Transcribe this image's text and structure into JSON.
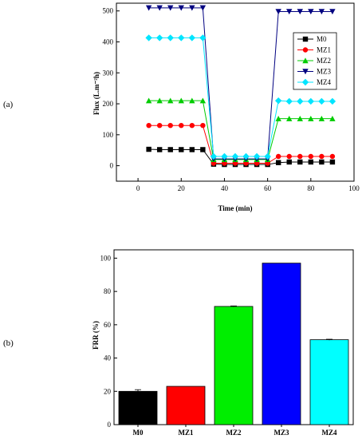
{
  "chart_data": [
    {
      "panel": "(a)",
      "type": "line",
      "title": "",
      "xlabel": "Time (min)",
      "ylabel": "Flux (L.m⁻²h)",
      "xlim": [
        -10,
        100
      ],
      "ylim": [
        -50,
        525
      ],
      "xticks": [
        "0",
        "20",
        "40",
        "60",
        "80",
        "100"
      ],
      "yticks": [
        "0",
        "100",
        "200",
        "300",
        "400",
        "500"
      ],
      "legend_position": "right",
      "x": [
        5,
        10,
        15,
        20,
        25,
        30,
        35,
        40,
        45,
        50,
        55,
        60,
        65,
        70,
        75,
        80,
        85,
        90
      ],
      "series": [
        {
          "name": "M0",
          "color": "#000000",
          "marker": "square",
          "values": [
            53,
            52,
            52,
            52,
            52,
            52,
            5,
            4,
            4,
            4,
            4,
            4,
            10,
            12,
            12,
            12,
            12,
            12
          ]
        },
        {
          "name": "MZ1",
          "color": "#ff0000",
          "marker": "circle",
          "values": [
            130,
            130,
            130,
            130,
            130,
            130,
            8,
            8,
            8,
            8,
            8,
            8,
            30,
            30,
            30,
            30,
            30,
            30
          ]
        },
        {
          "name": "MZ2",
          "color": "#00cc00",
          "marker": "triangle-up",
          "values": [
            210,
            210,
            210,
            210,
            210,
            210,
            20,
            20,
            20,
            20,
            20,
            20,
            152,
            152,
            152,
            152,
            152,
            152
          ]
        },
        {
          "name": "MZ3",
          "color": "#000080",
          "marker": "triangle-down",
          "values": [
            510,
            510,
            510,
            510,
            510,
            510,
            22,
            22,
            22,
            22,
            22,
            22,
            498,
            498,
            498,
            498,
            498,
            498
          ]
        },
        {
          "name": "MZ4",
          "color": "#00e5ff",
          "marker": "diamond",
          "values": [
            413,
            413,
            413,
            413,
            413,
            413,
            30,
            30,
            30,
            30,
            30,
            30,
            210,
            208,
            208,
            208,
            208,
            208
          ]
        }
      ]
    },
    {
      "panel": "(b)",
      "type": "bar",
      "title": "",
      "xlabel": "",
      "ylabel": "FRR (%)",
      "ylim": [
        0,
        105
      ],
      "yticks": [
        "0",
        "20",
        "40",
        "60",
        "80",
        "100"
      ],
      "categories": [
        "M0",
        "MZ1",
        "MZ2",
        "MZ3",
        "MZ4"
      ],
      "values": [
        20,
        23,
        71,
        97,
        51
      ],
      "errors": [
        1.0,
        0,
        0.3,
        0,
        0.3
      ],
      "colors": [
        "#000000",
        "#ff0000",
        "#00ee00",
        "#0000ff",
        "#00ffff"
      ]
    }
  ]
}
